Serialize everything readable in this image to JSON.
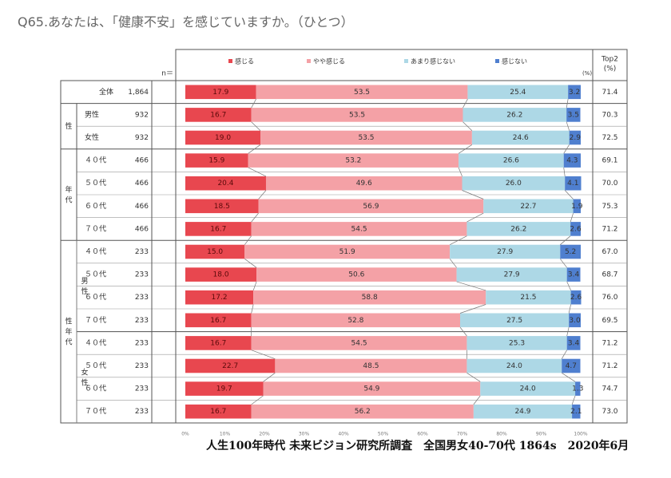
{
  "title": "Q65.あなたは、「健康不安」を感じていますか。（ひとつ）",
  "footer": "人生100年時代 未来ビジョン研究所調査　全国男女40-70代 1864s　2020年6月",
  "header": {
    "n_label": "n＝",
    "pct_unit": "(%)",
    "top2_label": "Top2",
    "top2_unit": "(%)"
  },
  "groups": [
    {
      "label": "性",
      "start": 1,
      "end": 2
    },
    {
      "label": "年代",
      "start": 3,
      "end": 6
    },
    {
      "label": "性年代",
      "start": 7,
      "end": 14
    },
    {
      "label": "男性",
      "start": 7,
      "end": 10
    },
    {
      "label": "女性",
      "start": 11,
      "end": 14
    }
  ],
  "colors": {
    "感じる": "#e8474f",
    "やや感じる": "#f4a1a6",
    "あまり感じない": "#add8e6",
    "感じない": "#4f7fcf"
  },
  "chart_data": {
    "type": "bar",
    "stacked": true,
    "orientation": "horizontal",
    "xlim": [
      0,
      100
    ],
    "x_ticks": [
      "0%",
      "10%",
      "20%",
      "30%",
      "40%",
      "50%",
      "60%",
      "70%",
      "80%",
      "90%",
      "100%"
    ],
    "series_names": [
      "感じる",
      "やや感じる",
      "あまり感じない",
      "感じない"
    ],
    "rows": [
      {
        "label": "全体",
        "n": "1,864",
        "values": [
          17.9,
          53.5,
          25.4,
          3.2
        ],
        "top2": "71.4"
      },
      {
        "label": "男性",
        "n": "932",
        "values": [
          16.7,
          53.5,
          26.2,
          3.5
        ],
        "top2": "70.3"
      },
      {
        "label": "女性",
        "n": "932",
        "values": [
          19.0,
          53.5,
          24.6,
          2.9
        ],
        "top2": "72.5"
      },
      {
        "label": "４０代",
        "n": "466",
        "values": [
          15.9,
          53.2,
          26.6,
          4.3
        ],
        "top2": "69.1"
      },
      {
        "label": "５０代",
        "n": "466",
        "values": [
          20.4,
          49.6,
          26.0,
          4.1
        ],
        "top2": "70.0"
      },
      {
        "label": "６０代",
        "n": "466",
        "values": [
          18.5,
          56.9,
          22.7,
          1.9
        ],
        "top2": "75.3"
      },
      {
        "label": "７０代",
        "n": "466",
        "values": [
          16.7,
          54.5,
          26.2,
          2.6
        ],
        "top2": "71.2"
      },
      {
        "label": "４０代",
        "n": "233",
        "values": [
          15.0,
          51.9,
          27.9,
          5.2
        ],
        "top2": "67.0"
      },
      {
        "label": "５０代",
        "n": "233",
        "values": [
          18.0,
          50.6,
          27.9,
          3.4
        ],
        "top2": "68.7"
      },
      {
        "label": "６０代",
        "n": "233",
        "values": [
          17.2,
          58.8,
          21.5,
          2.6
        ],
        "top2": "76.0"
      },
      {
        "label": "７０代",
        "n": "233",
        "values": [
          16.7,
          52.8,
          27.5,
          3.0
        ],
        "top2": "69.5"
      },
      {
        "label": "４０代",
        "n": "233",
        "values": [
          16.7,
          54.5,
          25.3,
          3.4
        ],
        "top2": "71.2"
      },
      {
        "label": "５０代",
        "n": "233",
        "values": [
          22.7,
          48.5,
          24.0,
          4.7
        ],
        "top2": "71.2"
      },
      {
        "label": "６０代",
        "n": "233",
        "values": [
          19.7,
          54.9,
          24.0,
          1.3
        ],
        "top2": "74.7"
      },
      {
        "label": "７０代",
        "n": "233",
        "values": [
          16.7,
          56.2,
          24.9,
          2.1
        ],
        "top2": "73.0"
      }
    ]
  }
}
